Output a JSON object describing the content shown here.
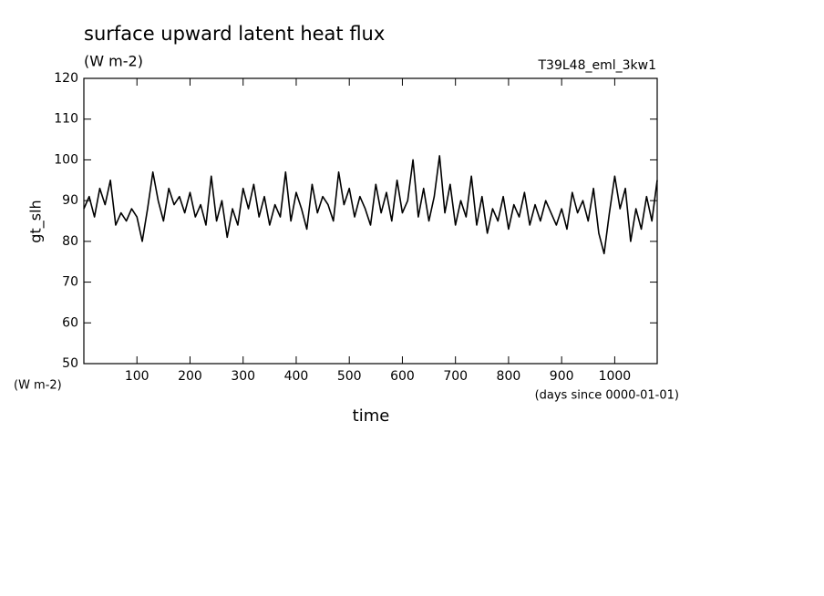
{
  "chart_data": {
    "type": "line",
    "title": "surface upward latent heat flux",
    "subtitle": "(W m-2)",
    "annotation": "T39L48_eml_3kw1",
    "y_label": "gt_slh",
    "y_unit": "(W m-2)",
    "x_label": "time",
    "x_unit": "(days since 0000-01-01)",
    "xlim": [
      0,
      1080
    ],
    "ylim": [
      50,
      120
    ],
    "xticks": [
      100,
      200,
      300,
      400,
      500,
      600,
      700,
      800,
      900,
      1000
    ],
    "yticks": [
      50,
      60,
      70,
      80,
      90,
      100,
      110,
      120
    ],
    "color": "#000000",
    "x": [
      0,
      10,
      20,
      30,
      40,
      50,
      60,
      70,
      80,
      90,
      100,
      110,
      120,
      130,
      140,
      150,
      160,
      170,
      180,
      190,
      200,
      210,
      220,
      230,
      240,
      250,
      260,
      270,
      280,
      290,
      300,
      310,
      320,
      330,
      340,
      350,
      360,
      370,
      380,
      390,
      400,
      410,
      420,
      430,
      440,
      450,
      460,
      470,
      480,
      490,
      500,
      510,
      520,
      530,
      540,
      550,
      560,
      570,
      580,
      590,
      600,
      610,
      620,
      630,
      640,
      650,
      660,
      670,
      680,
      690,
      700,
      710,
      720,
      730,
      740,
      750,
      760,
      770,
      780,
      790,
      800,
      810,
      820,
      830,
      840,
      850,
      860,
      870,
      880,
      890,
      900,
      910,
      920,
      930,
      940,
      950,
      960,
      970,
      980,
      990,
      1000,
      1010,
      1020,
      1030,
      1040,
      1050,
      1060,
      1070,
      1080
    ],
    "values": [
      88,
      91,
      86,
      93,
      89,
      95,
      84,
      87,
      85,
      88,
      86,
      80,
      88,
      97,
      90,
      85,
      93,
      89,
      91,
      87,
      92,
      86,
      89,
      84,
      96,
      85,
      90,
      81,
      88,
      84,
      93,
      88,
      94,
      86,
      91,
      84,
      89,
      86,
      97,
      85,
      92,
      88,
      83,
      94,
      87,
      91,
      89,
      85,
      97,
      89,
      93,
      86,
      91,
      88,
      84,
      94,
      87,
      92,
      85,
      95,
      87,
      90,
      100,
      86,
      93,
      85,
      91,
      101,
      87,
      94,
      84,
      90,
      86,
      96,
      84,
      91,
      82,
      88,
      85,
      91,
      83,
      89,
      86,
      92,
      84,
      89,
      85,
      90,
      87,
      84,
      88,
      83,
      92,
      87,
      90,
      85,
      93,
      82,
      77,
      87,
      96,
      88,
      93,
      80,
      88,
      83,
      91,
      85,
      95
    ]
  }
}
